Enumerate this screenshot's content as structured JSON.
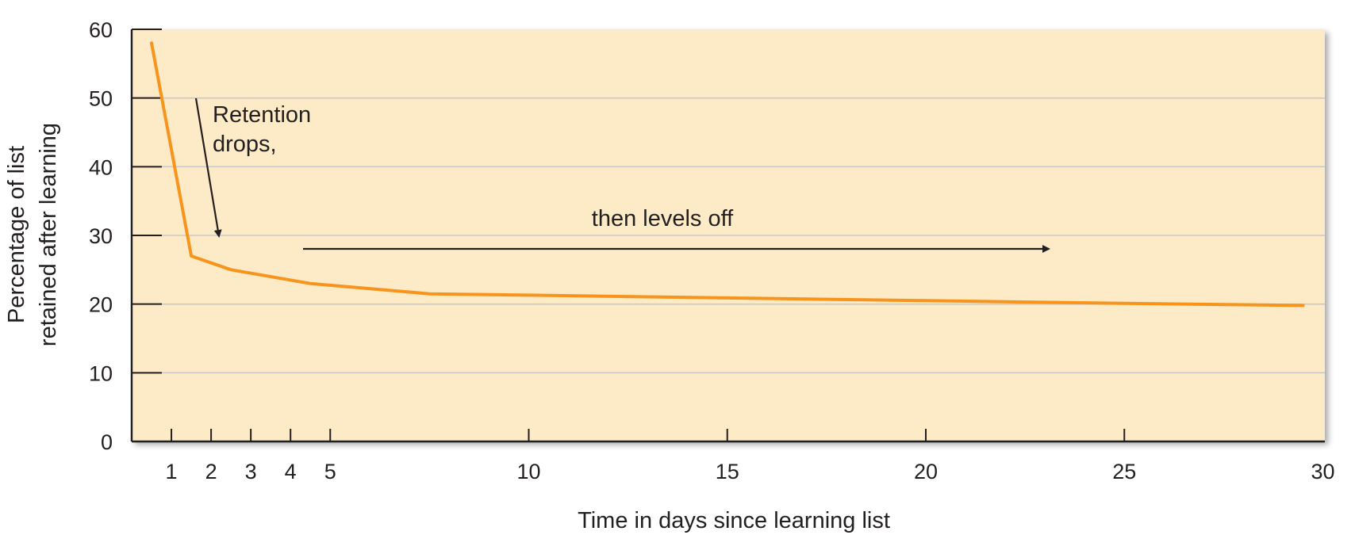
{
  "chart_data": {
    "type": "line",
    "title": "",
    "xlabel": "Time in days since learning list",
    "ylabel_line1": "Percentage of list",
    "ylabel_line2": "retained after learning",
    "xlim": [
      0,
      30
    ],
    "ylim": [
      0,
      60
    ],
    "xticks": [
      1,
      2,
      3,
      4,
      5,
      10,
      15,
      20,
      25,
      30
    ],
    "yticks": [
      0,
      10,
      20,
      30,
      40,
      50,
      60
    ],
    "grid": "horizontal",
    "series": [
      {
        "x": [
          0.5,
          1.5,
          2.5,
          4.5,
          7.5,
          10,
          15,
          20,
          25,
          29.5
        ],
        "y": [
          58,
          27,
          25,
          23,
          21.5,
          21.3,
          20.9,
          20.5,
          20.1,
          19.8
        ]
      }
    ],
    "annotations": {
      "drops_line1": "Retention",
      "drops_line2": "drops,",
      "levels": "then levels off"
    }
  },
  "colors": {
    "plot_bg": "#fcebc6",
    "line": "#f7941d",
    "grid": "#c9c9c9",
    "axis": "#231f20"
  }
}
